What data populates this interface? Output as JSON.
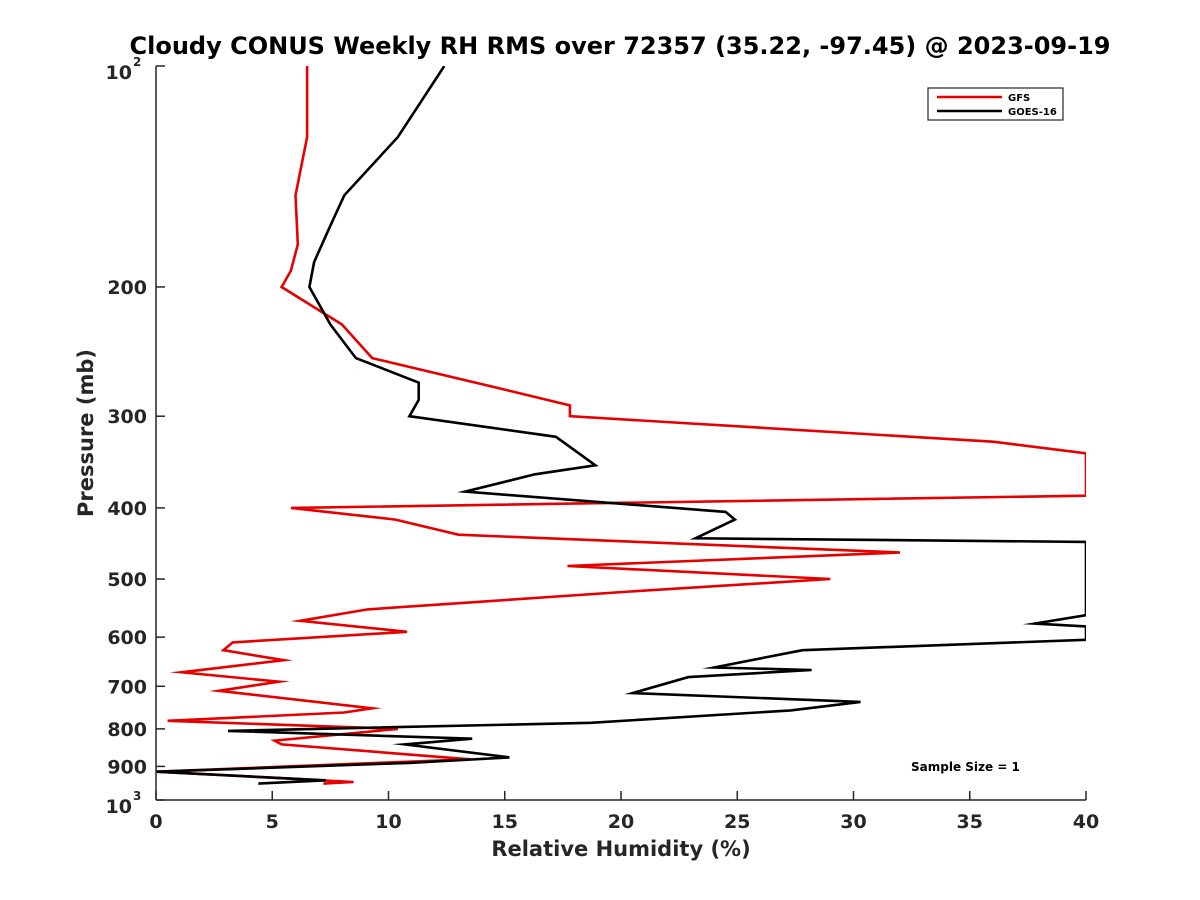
{
  "chart_data": {
    "type": "line",
    "title": "Cloudy CONUS Weekly RH RMS over 72357 (35.22, -97.45) @ 2023-09-19",
    "xlabel": "Relative Humidity (%)",
    "ylabel": "Pressure (mb)",
    "xlim": [
      0,
      40
    ],
    "ylim": [
      100,
      1000
    ],
    "y_scale": "log",
    "y_reversed": true,
    "grid": false,
    "x_ticks": [
      0,
      5,
      10,
      15,
      20,
      25,
      30,
      35,
      40
    ],
    "y_ticks": [
      {
        "value": 100,
        "label": "10",
        "exp": "2"
      },
      {
        "value": 200,
        "label": "200",
        "exp": ""
      },
      {
        "value": 300,
        "label": "300",
        "exp": ""
      },
      {
        "value": 400,
        "label": "400",
        "exp": ""
      },
      {
        "value": 500,
        "label": "500",
        "exp": ""
      },
      {
        "value": 600,
        "label": "600",
        "exp": ""
      },
      {
        "value": 700,
        "label": "700",
        "exp": ""
      },
      {
        "value": 800,
        "label": "800",
        "exp": ""
      },
      {
        "value": 900,
        "label": "900",
        "exp": ""
      },
      {
        "value": 1000,
        "label": "10",
        "exp": "3"
      }
    ],
    "legend_position": "top-right",
    "annotation": "Sample Size = 1",
    "series": [
      {
        "name": "GFS",
        "color": "#e60000",
        "points": [
          [
            6.5,
            100
          ],
          [
            6.5,
            125
          ],
          [
            6.0,
            150
          ],
          [
            6.1,
            175
          ],
          [
            5.8,
            190
          ],
          [
            5.4,
            200
          ],
          [
            8.0,
            225
          ],
          [
            9.3,
            250
          ],
          [
            14.8,
            275
          ],
          [
            17.8,
            290
          ],
          [
            17.8,
            300
          ],
          [
            36.0,
            325
          ],
          [
            40,
            337
          ],
          [
            40,
            385
          ],
          [
            5.8,
            400
          ],
          [
            10.3,
            415
          ],
          [
            13.0,
            435
          ],
          [
            32.0,
            460
          ],
          [
            17.7,
            480
          ],
          [
            29.0,
            500
          ],
          [
            20.4,
            520
          ],
          [
            9.1,
            550
          ],
          [
            6.2,
            570
          ],
          [
            10.8,
            590
          ],
          [
            3.3,
            610
          ],
          [
            2.9,
            625
          ],
          [
            5.5,
            645
          ],
          [
            1.1,
            670
          ],
          [
            5.3,
            690
          ],
          [
            2.7,
            710
          ],
          [
            9.3,
            750
          ],
          [
            8.1,
            760
          ],
          [
            0.5,
            780
          ],
          [
            10.4,
            800
          ],
          [
            5.1,
            830
          ],
          [
            5.4,
            840
          ],
          [
            13.5,
            880
          ],
          [
            9.5,
            890
          ],
          [
            0,
            915
          ],
          [
            8.5,
            945
          ],
          [
            7.2,
            950
          ]
        ]
      },
      {
        "name": "GOES-16",
        "color": "#000000",
        "points": [
          [
            12.4,
            100
          ],
          [
            10.4,
            125
          ],
          [
            8.1,
            150
          ],
          [
            7.5,
            165
          ],
          [
            6.8,
            185
          ],
          [
            6.6,
            200
          ],
          [
            7.5,
            225
          ],
          [
            8.6,
            250
          ],
          [
            11.3,
            270
          ],
          [
            11.3,
            285
          ],
          [
            10.9,
            300
          ],
          [
            17.2,
            320
          ],
          [
            18.9,
            350
          ],
          [
            16.3,
            360
          ],
          [
            13.3,
            380
          ],
          [
            24.5,
            405
          ],
          [
            24.9,
            415
          ],
          [
            23.2,
            440
          ],
          [
            40,
            445
          ],
          [
            40,
            560
          ],
          [
            37.8,
            575
          ],
          [
            40,
            580
          ],
          [
            40,
            605
          ],
          [
            27.8,
            625
          ],
          [
            24.0,
            660
          ],
          [
            28.2,
            665
          ],
          [
            22.9,
            680
          ],
          [
            20.5,
            715
          ],
          [
            30.3,
            735
          ],
          [
            27.3,
            755
          ],
          [
            18.7,
            785
          ],
          [
            3.1,
            805
          ],
          [
            13.6,
            825
          ],
          [
            10.7,
            840
          ],
          [
            15.2,
            875
          ],
          [
            10.9,
            890
          ],
          [
            0,
            915
          ],
          [
            7.3,
            940
          ],
          [
            4.4,
            950
          ]
        ]
      }
    ]
  }
}
